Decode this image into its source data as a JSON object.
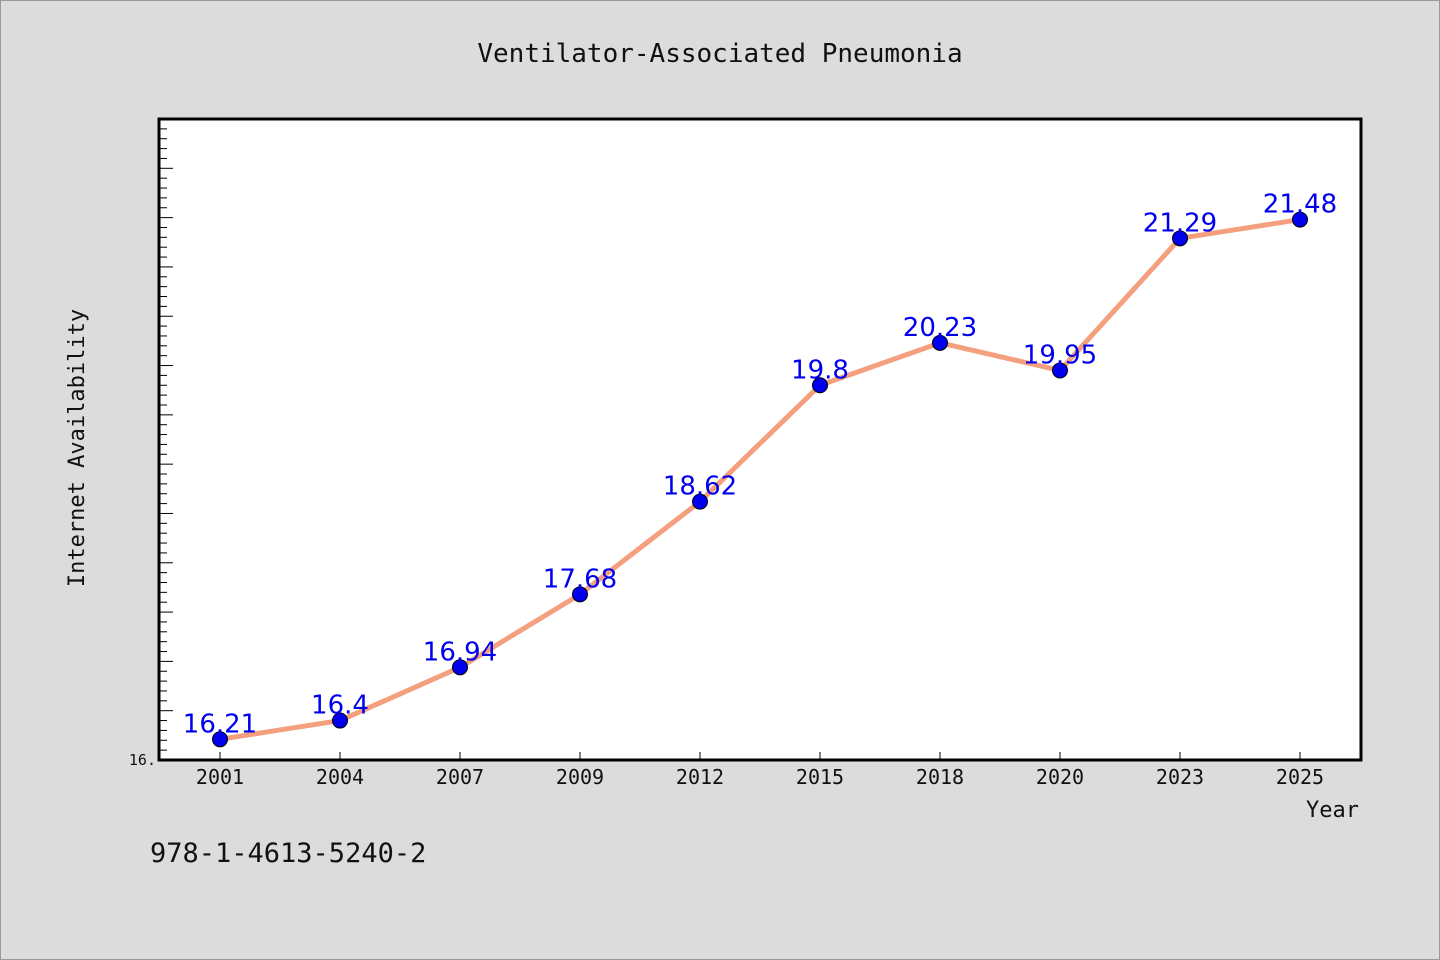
{
  "chart_data": {
    "type": "line",
    "title": "Ventilator-Associated Pneumonia",
    "xlabel": "Year",
    "ylabel": "Internet Availability",
    "categories": [
      "2001",
      "2004",
      "2007",
      "2009",
      "2012",
      "2015",
      "2018",
      "2020",
      "2023",
      "2025"
    ],
    "series": [
      {
        "values": [
          16.21,
          16.4,
          16.94,
          17.68,
          18.62,
          19.8,
          20.23,
          19.95,
          21.29,
          21.48
        ]
      }
    ],
    "data_labels": [
      "16.21",
      "16.4",
      "16.94",
      "17.68",
      "18.62",
      "19.8",
      "20.23",
      "19.95",
      "21.29",
      "21.48"
    ],
    "ylim": [
      16.0,
      22.5
    ],
    "ytick_labels": [
      {
        "value": 16.0,
        "label": "16."
      }
    ],
    "grid": false,
    "legend": "none",
    "colors": {
      "line": "#f4a07e",
      "marker": "#0000ee",
      "data_label": "#0000ee",
      "plot_background": "#ffffff",
      "page_background": "#dcdcdc"
    }
  },
  "footer": {
    "text": "978-1-4613-5240-2"
  }
}
